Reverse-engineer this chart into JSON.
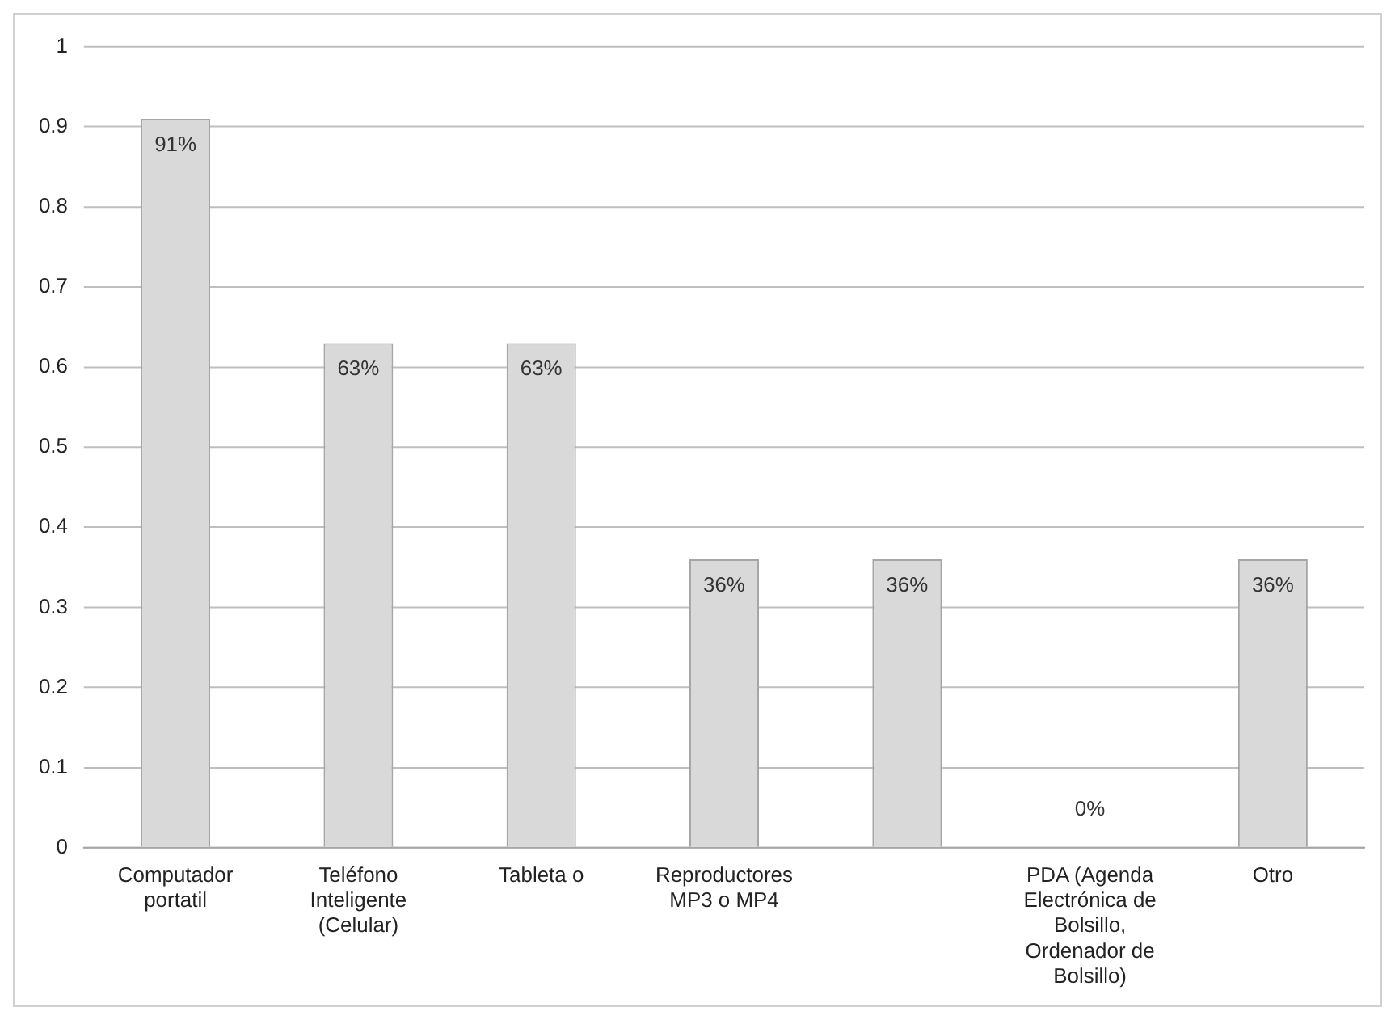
{
  "chart_data": {
    "type": "bar",
    "categories": [
      "Computador portatil",
      "Teléfono Inteligente (Celular)",
      "Tableta o",
      "Reproductores MP3 o MP4",
      null,
      "PDA (Agenda Electrónica de Bolsillo, Ordenador de Bolsillo)",
      "Otro"
    ],
    "values": [
      0.91,
      0.63,
      0.63,
      0.36,
      0.36,
      0,
      0.36
    ],
    "value_labels": [
      "91%",
      "63%",
      "63%",
      "36%",
      "36%",
      "0%",
      "36%"
    ],
    "color": "#d9d9d9",
    "ylim": [
      0,
      1
    ],
    "yticks": [
      0,
      0.1,
      0.2,
      0.3,
      0.4,
      0.5,
      0.6,
      0.7,
      0.8,
      0.9,
      1
    ],
    "grid": "y",
    "legend": false
  }
}
